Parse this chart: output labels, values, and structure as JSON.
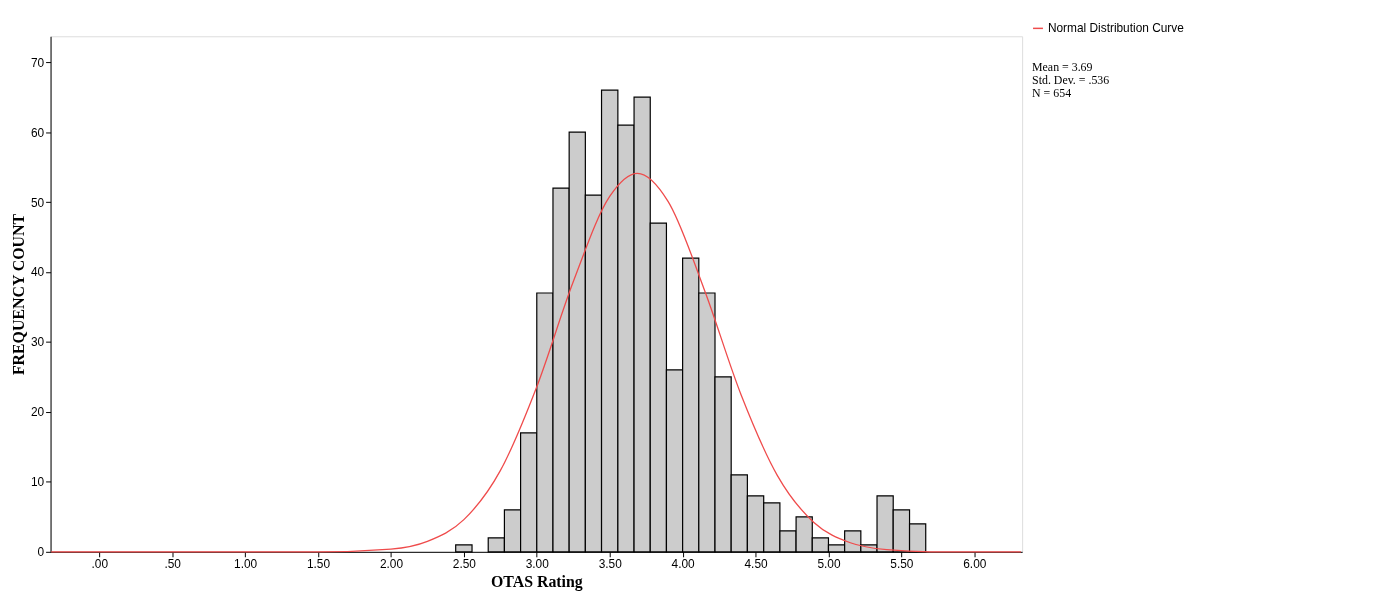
{
  "chart_data": {
    "type": "histogram",
    "xlabel": "OTAS Rating",
    "ylabel": "FREQUENCY COUNT",
    "bins": [
      2.444,
      2.556,
      2.667,
      2.778,
      2.889,
      3.0,
      3.111,
      3.222,
      3.333,
      3.444,
      3.556,
      3.667,
      3.778,
      3.889,
      4.0,
      4.111,
      4.222,
      4.333,
      4.444,
      4.556,
      4.667,
      4.778,
      4.889,
      5.0,
      5.111,
      5.222,
      5.333,
      5.444,
      5.556,
      5.667
    ],
    "values": [
      1,
      0,
      2,
      6,
      17,
      37,
      52,
      60,
      51,
      66,
      61,
      65,
      47,
      26,
      42,
      37,
      25,
      11,
      8,
      7,
      3,
      5,
      2,
      1,
      3,
      1,
      8,
      6,
      4
    ],
    "color": "#cccccc",
    "series": [
      {
        "name": "Normal Distribution Curve",
        "type": "line",
        "color": "#ef4b4b",
        "x": [
          -0.33,
          1.0,
          1.5,
          2.0,
          2.25,
          2.5,
          2.75,
          3.0,
          3.25,
          3.5,
          3.69,
          3.9,
          4.15,
          4.4,
          4.65,
          4.9,
          5.15,
          5.4,
          5.7,
          6.0,
          6.32
        ],
        "values": [
          0,
          0,
          0,
          0.4,
          1.5,
          4.6,
          11.6,
          23.6,
          38.6,
          50.8,
          54.1,
          50.1,
          37.4,
          22.5,
          10.9,
          4.2,
          1.3,
          0.3,
          0,
          0,
          0
        ]
      }
    ],
    "xlim": [
      -0.334,
      6.328
    ],
    "xticks": [
      {
        "value": 0,
        "label": ".00"
      },
      {
        "value": 0.5,
        "label": ".50"
      },
      {
        "value": 1,
        "label": "1.00"
      },
      {
        "value": 1.5,
        "label": "1.50"
      },
      {
        "value": 2,
        "label": "2.00"
      },
      {
        "value": 2.5,
        "label": "2.50"
      },
      {
        "value": 3,
        "label": "3.00"
      },
      {
        "value": 3.5,
        "label": "3.50"
      },
      {
        "value": 4,
        "label": "4.00"
      },
      {
        "value": 4.5,
        "label": "4.50"
      },
      {
        "value": 5,
        "label": "5.00"
      },
      {
        "value": 5.5,
        "label": "5.50"
      },
      {
        "value": 6,
        "label": "6.00"
      }
    ],
    "ylim": [
      0,
      73.7
    ],
    "yticks": [
      0,
      10,
      20,
      30,
      40,
      50,
      60,
      70
    ],
    "annotations": [
      "Mean = 3.69",
      "Std. Dev. = .536",
      "N = 654"
    ],
    "legend": "top right",
    "grid": false
  }
}
